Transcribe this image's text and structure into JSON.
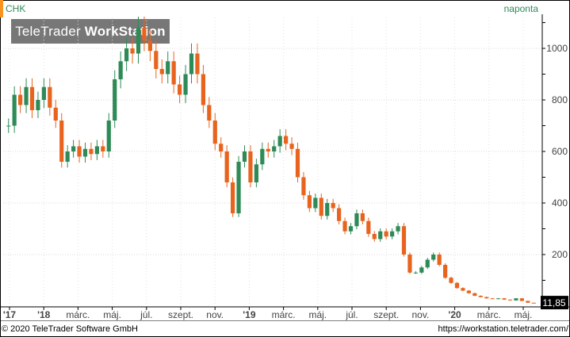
{
  "header": {
    "ticker": "CHK",
    "period": "naponta",
    "watermark_brand": "TeleTrader ",
    "watermark_product": "WorkStation"
  },
  "footer": {
    "copyright": "© 2020 TeleTrader Software GmbH",
    "url": "https://workstation.teletrader.com/"
  },
  "last_price": "11,85",
  "colors": {
    "up": "#2e8b57",
    "down": "#e8641e",
    "accent": "#f7931e",
    "last_price_bg": "#000000",
    "last_price_fg": "#ffffff"
  },
  "chart_data": {
    "type": "candlestick",
    "y_axis": {
      "ticks": [
        200,
        400,
        600,
        800,
        1000
      ],
      "labels": [
        "200",
        "400",
        "600",
        "800",
        "1000"
      ],
      "ylim": [
        0,
        1120
      ],
      "position": "right",
      "grid": true
    },
    "x_axis": {
      "labels": [
        {
          "text": "'17",
          "year": true
        },
        {
          "text": "'18",
          "year": true
        },
        {
          "text": "márc.",
          "year": false
        },
        {
          "text": "máj.",
          "year": false
        },
        {
          "text": "júl.",
          "year": false
        },
        {
          "text": "szept.",
          "year": false
        },
        {
          "text": "nov.",
          "year": false
        },
        {
          "text": "'19",
          "year": true
        },
        {
          "text": "márc.",
          "year": false
        },
        {
          "text": "máj.",
          "year": false
        },
        {
          "text": "júl.",
          "year": false
        },
        {
          "text": "szept.",
          "year": false
        },
        {
          "text": "nov.",
          "year": false
        },
        {
          "text": "'20",
          "year": true
        },
        {
          "text": "márc.",
          "year": false
        },
        {
          "text": "máj.",
          "year": false
        }
      ]
    },
    "series": [
      {
        "values": [
          700,
          820,
          780,
          850,
          760,
          800,
          850,
          770,
          720,
          560,
          600,
          620,
          580,
          610,
          590,
          620,
          600,
          720,
          880,
          950,
          1000,
          980,
          1080,
          1030,
          990,
          920,
          900,
          950,
          860,
          820,
          900,
          980,
          900,
          780,
          720,
          630,
          600,
          480,
          360,
          560,
          600,
          480,
          550,
          610,
          600,
          620,
          660,
          630,
          610,
          500,
          430,
          380,
          420,
          350,
          400,
          380,
          330,
          290,
          310,
          360,
          330,
          280,
          260,
          290,
          270,
          290,
          310,
          200,
          130,
          130,
          150,
          180,
          200,
          160,
          110,
          90,
          70,
          60,
          50,
          40,
          35,
          30,
          28,
          30,
          25,
          22,
          30,
          20,
          13,
          12
        ]
      }
    ]
  }
}
